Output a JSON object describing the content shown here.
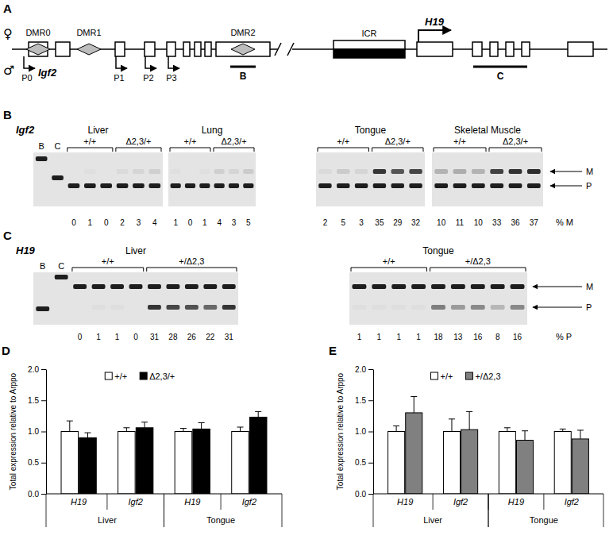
{
  "diagram": {
    "label": "A",
    "maternal": "♀",
    "paternal": "♂",
    "dmrs": [
      "DMR0",
      "DMR1",
      "DMR2"
    ],
    "icr": "ICR",
    "genes": [
      "Igf2",
      "H19"
    ],
    "promoters": [
      "P0",
      "P1",
      "P2",
      "P3"
    ],
    "probes": [
      "B",
      "C"
    ]
  },
  "gels": [
    {
      "label": "B",
      "gene": "Igf2",
      "controls": [
        "B",
        "C"
      ],
      "bands": [
        "M",
        "P"
      ],
      "measure": "% M",
      "tissues": [
        {
          "name": "Liver",
          "groups": [
            "+/+",
            "Δ2,3/+"
          ],
          "percent": [
            [
              0,
              1,
              0
            ],
            [
              2,
              3,
              4
            ]
          ]
        },
        {
          "name": "Lung",
          "groups": [
            "+/+",
            "Δ2,3/+"
          ],
          "percent": [
            [
              1,
              0,
              1
            ],
            [
              4,
              3,
              5
            ]
          ]
        },
        {
          "name": "Tongue",
          "groups": [
            "+/+",
            "Δ2,3/+"
          ],
          "percent": [
            [
              2,
              5,
              3
            ],
            [
              35,
              29,
              32
            ]
          ]
        },
        {
          "name": "Skeletal Muscle",
          "groups": [
            "+/+",
            "Δ2,3/+"
          ],
          "percent": [
            [
              10,
              11,
              10
            ],
            [
              33,
              36,
              37
            ]
          ]
        }
      ]
    },
    {
      "label": "C",
      "gene": "H19",
      "controls": [
        "B",
        "C"
      ],
      "bands": [
        "M",
        "P"
      ],
      "measure": "% P",
      "tissues": [
        {
          "name": "Liver",
          "groups": [
            "+/+",
            "+/Δ2,3"
          ],
          "percent": [
            [
              0,
              1,
              1,
              0
            ],
            [
              31,
              28,
              26,
              22,
              31
            ]
          ]
        },
        {
          "name": "Tongue",
          "groups": [
            "+/+",
            "+/Δ2,3"
          ],
          "percent": [
            [
              1,
              1,
              1,
              1
            ],
            [
              18,
              13,
              16,
              8,
              16
            ]
          ]
        }
      ]
    }
  ],
  "chart_data": [
    {
      "type": "bar",
      "label": "D",
      "ylabel": "Total expression relative to Arppo",
      "categories": [
        "H19",
        "Igf2",
        "H19",
        "Igf2"
      ],
      "groups": [
        "Liver",
        "Tongue"
      ],
      "series": [
        {
          "name": "+/+",
          "color": "#ffffff",
          "values": [
            1.0,
            1.0,
            1.0,
            1.0
          ],
          "errors": [
            0.17,
            0.06,
            0.05,
            0.07
          ]
        },
        {
          "name": "Δ2,3/+",
          "color": "#000000",
          "values": [
            0.9,
            1.06,
            1.04,
            1.23
          ],
          "errors": [
            0.08,
            0.09,
            0.1,
            0.09
          ]
        }
      ],
      "ylim": [
        0,
        2
      ],
      "yticks": [
        {
          "value": 0,
          "label": "0.0"
        },
        0.5,
        {
          "value": 1,
          "label": "1.0"
        },
        1.5,
        {
          "value": 2,
          "label": "2.0"
        }
      ],
      "legend": "top"
    },
    {
      "type": "bar",
      "label": "E",
      "ylabel": "Total expression relative to Arppo",
      "categories": [
        "H19",
        "Igf2",
        "H19",
        "Igf2"
      ],
      "groups": [
        "Liver",
        "Tongue"
      ],
      "series": [
        {
          "name": "+/+",
          "color": "#ffffff",
          "values": [
            1.0,
            1.0,
            1.0,
            1.0
          ],
          "errors": [
            0.09,
            0.2,
            0.06,
            0.04
          ]
        },
        {
          "name": "+/Δ2,3",
          "color": "#808080",
          "values": [
            1.3,
            1.03,
            0.86,
            0.88
          ],
          "errors": [
            0.26,
            0.29,
            0.15,
            0.14
          ]
        }
      ],
      "ylim": [
        0,
        2
      ],
      "yticks": [
        {
          "value": 0,
          "label": "0.0"
        },
        0.5,
        {
          "value": 1,
          "label": "1.0"
        },
        1.5,
        {
          "value": 2,
          "label": "2.0"
        }
      ],
      "legend": "top"
    }
  ]
}
